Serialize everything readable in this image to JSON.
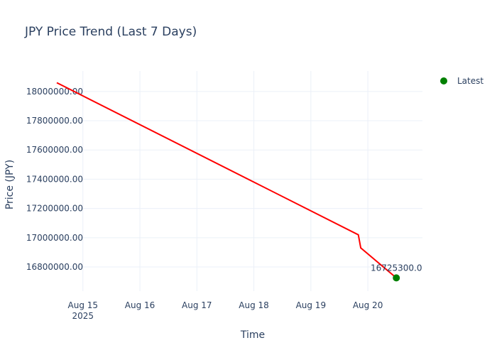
{
  "chart_data": {
    "type": "line",
    "title": "JPY Price Trend (Last 7 Days)",
    "xlabel": "Time",
    "ylabel": "Price (JPY)",
    "x_tick_labels": [
      {
        "label": "Aug 15",
        "sublabel": "2025",
        "day": 15
      },
      {
        "label": "Aug 16",
        "day": 16
      },
      {
        "label": "Aug 17",
        "day": 17
      },
      {
        "label": "Aug 18",
        "day": 18
      },
      {
        "label": "Aug 19",
        "day": 19
      },
      {
        "label": "Aug 20",
        "day": 20
      }
    ],
    "y_ticks": [
      16800000,
      17000000,
      17200000,
      17400000,
      17600000,
      17800000,
      18000000
    ],
    "y_tick_labels": [
      "16800000.00",
      "17000000.00",
      "17200000.00",
      "17400000.00",
      "17600000.00",
      "17800000.00",
      "18000000.00"
    ],
    "xlim": [
      "2025-08-14 13:00",
      "2025-08-20 23:00"
    ],
    "ylim": [
      16635000,
      18140000
    ],
    "grid": true,
    "series": [
      {
        "color": "#ff0000",
        "x": [
          "2025-08-14 13:00",
          "2025-08-19 20:00",
          "2025-08-19 21:00",
          "2025-08-20 12:00"
        ],
        "y": [
          18060000,
          17020000,
          16930000,
          16725300
        ]
      }
    ],
    "latest_point": {
      "name": "Latest",
      "color": "#008000",
      "x": "2025-08-20 12:00",
      "y": 16725300,
      "label": "16725300.0"
    },
    "legend_position": "top-right"
  }
}
